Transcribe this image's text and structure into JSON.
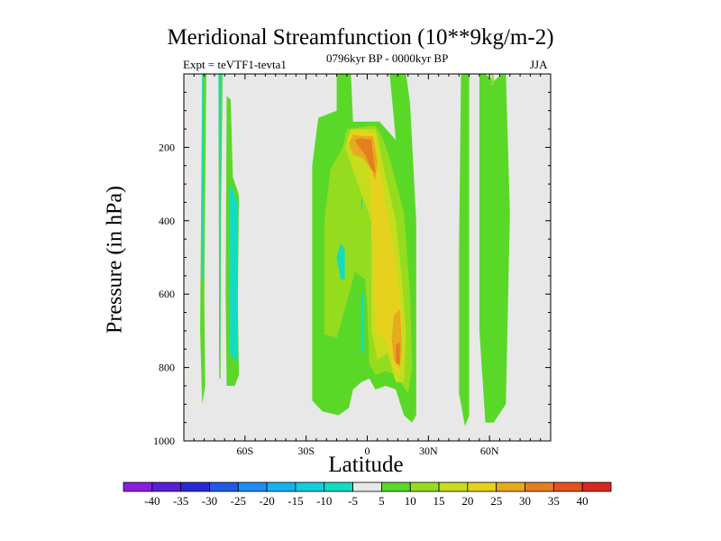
{
  "chart_data": {
    "type": "heatmap",
    "title": "Meridional Streamfunction (10**9kg/m-2)",
    "experiment_label": "Expt = teVTF1-tevta1",
    "period_label": "0796kyr BP - 0000kyr BP",
    "season_label": "JJA",
    "xlabel": "Latitude",
    "ylabel": "Pressure (in hPa)",
    "x_range": [
      -90,
      90
    ],
    "y_range": [
      1000,
      0
    ],
    "x_ticks": [
      {
        "value": -60,
        "label": "60S"
      },
      {
        "value": -30,
        "label": "30S"
      },
      {
        "value": 0,
        "label": "0"
      },
      {
        "value": 30,
        "label": "30N"
      },
      {
        "value": 60,
        "label": "60N"
      }
    ],
    "y_ticks": [
      {
        "value": 200,
        "label": "200"
      },
      {
        "value": 400,
        "label": "400"
      },
      {
        "value": 600,
        "label": "600"
      },
      {
        "value": 800,
        "label": "800"
      },
      {
        "value": 1000,
        "label": "1000"
      }
    ],
    "colorbar": {
      "levels": [
        "-40",
        "-35",
        "-30",
        "-25",
        "-20",
        "-15",
        "-10",
        "-5",
        "5",
        "10",
        "15",
        "20",
        "25",
        "30",
        "35",
        "40"
      ],
      "colors": [
        "#8a1ee0",
        "#5a1ed8",
        "#2a28d8",
        "#1e5ae6",
        "#1e8ef0",
        "#14b2f0",
        "#14cce0",
        "#14dcc0",
        "#e8e8e8",
        "#5ad828",
        "#96dc1e",
        "#c8dc1e",
        "#e6d21e",
        "#e6aa1e",
        "#e67e1e",
        "#e6501e",
        "#d8281e"
      ]
    },
    "regions": [
      {
        "level": "5",
        "polygon": [
          [
            -81,
            0
          ],
          [
            -79,
            0
          ],
          [
            -80,
            600
          ],
          [
            -79.5,
            850
          ],
          [
            -81,
            900
          ],
          [
            -82,
            700
          ]
        ]
      },
      {
        "level": "-5",
        "polygon": [
          [
            -81,
            0
          ],
          [
            -80.3,
            0
          ],
          [
            -80.6,
            300
          ],
          [
            -80.8,
            560
          ],
          [
            -81.3,
            560
          ],
          [
            -81.2,
            200
          ]
        ]
      },
      {
        "level": "5",
        "polygon": [
          [
            -73,
            0
          ],
          [
            -71,
            0
          ],
          [
            -71.8,
            400
          ],
          [
            -72,
            830
          ],
          [
            -72.6,
            830
          ],
          [
            -72.8,
            400
          ]
        ]
      },
      {
        "level": "-5",
        "polygon": [
          [
            -73,
            0
          ],
          [
            -72,
            0
          ],
          [
            -72.2,
            780
          ],
          [
            -72.7,
            780
          ],
          [
            -72.8,
            300
          ]
        ]
      },
      {
        "level": "5",
        "polygon": [
          [
            -69,
            60
          ],
          [
            -67,
            70
          ],
          [
            -66,
            280
          ],
          [
            -63,
            330
          ],
          [
            -63.5,
            620
          ],
          [
            -63,
            820
          ],
          [
            -65,
            850
          ],
          [
            -69,
            850
          ],
          [
            -69.5,
            600
          ]
        ]
      },
      {
        "level": "-5",
        "polygon": [
          [
            -67.5,
            300
          ],
          [
            -63.5,
            350
          ],
          [
            -63.6,
            620
          ],
          [
            -63.6,
            780
          ],
          [
            -65,
            780
          ],
          [
            -67.5,
            760
          ]
        ]
      },
      {
        "level": "5",
        "polygon": [
          [
            -15,
            0
          ],
          [
            -8,
            0
          ],
          [
            -7,
            130
          ],
          [
            6,
            130
          ],
          [
            14,
            180
          ],
          [
            11,
            0
          ],
          [
            19,
            0
          ],
          [
            21,
            80
          ],
          [
            24,
            400
          ],
          [
            24,
            930
          ],
          [
            22,
            950
          ],
          [
            18,
            930
          ],
          [
            14,
            860
          ],
          [
            9,
            850
          ],
          [
            4,
            860
          ],
          [
            1,
            830
          ],
          [
            -3,
            840
          ],
          [
            -7,
            860
          ],
          [
            -9,
            910
          ],
          [
            -14,
            930
          ],
          [
            -22,
            920
          ],
          [
            -27,
            890
          ],
          [
            -27,
            720
          ],
          [
            -27,
            250
          ],
          [
            -24,
            120
          ],
          [
            -15,
            100
          ]
        ]
      },
      {
        "level": "10",
        "polygon": [
          [
            -21,
            400
          ],
          [
            -18,
            260
          ],
          [
            -12,
            200
          ],
          [
            -10,
            150
          ],
          [
            4,
            140
          ],
          [
            8,
            180
          ],
          [
            12,
            250
          ],
          [
            18,
            380
          ],
          [
            21,
            600
          ],
          [
            22,
            800
          ],
          [
            20,
            870
          ],
          [
            14,
            820
          ],
          [
            9,
            810
          ],
          [
            4,
            820
          ],
          [
            1,
            790
          ],
          [
            0,
            640
          ],
          [
            -1,
            560
          ],
          [
            -6,
            540
          ],
          [
            -10,
            620
          ],
          [
            -15,
            720
          ],
          [
            -21,
            710
          ]
        ]
      },
      {
        "level": "15",
        "polygon": [
          [
            -11,
            200
          ],
          [
            -8,
            150
          ],
          [
            4,
            150
          ],
          [
            6,
            200
          ],
          [
            9,
            280
          ],
          [
            14,
            400
          ],
          [
            17,
            560
          ],
          [
            19,
            700
          ],
          [
            18,
            840
          ],
          [
            14,
            840
          ],
          [
            10,
            760
          ],
          [
            5,
            780
          ],
          [
            2,
            700
          ],
          [
            2,
            560
          ],
          [
            2,
            400
          ]
        ]
      },
      {
        "level": "20",
        "polygon": [
          [
            -10,
            175
          ],
          [
            -7,
            155
          ],
          [
            4,
            160
          ],
          [
            5,
            220
          ],
          [
            8,
            330
          ],
          [
            12,
            450
          ],
          [
            15,
            560
          ],
          [
            17,
            680
          ],
          [
            16,
            820
          ],
          [
            13,
            800
          ],
          [
            9,
            730
          ],
          [
            4,
            700
          ],
          [
            3,
            520
          ],
          [
            2,
            360
          ],
          [
            1,
            250
          ],
          [
            -5,
            220
          ]
        ]
      },
      {
        "level": "25",
        "polygon": [
          [
            -9,
            190
          ],
          [
            -7,
            165
          ],
          [
            -2,
            170
          ],
          [
            3,
            170
          ],
          [
            5,
            240
          ],
          [
            4,
            290
          ],
          [
            2,
            260
          ],
          [
            -2,
            230
          ],
          [
            -7,
            220
          ]
        ]
      },
      {
        "level": "25",
        "polygon": [
          [
            13,
            660
          ],
          [
            16,
            640
          ],
          [
            17,
            740
          ],
          [
            16,
            800
          ],
          [
            13,
            780
          ],
          [
            12,
            720
          ]
        ]
      },
      {
        "level": "30",
        "polygon": [
          [
            -6,
            180
          ],
          [
            -3,
            175
          ],
          [
            2,
            180
          ],
          [
            4,
            270
          ],
          [
            2,
            260
          ],
          [
            -1,
            220
          ],
          [
            -4,
            200
          ]
        ]
      },
      {
        "level": "30",
        "polygon": [
          [
            14,
            740
          ],
          [
            16,
            730
          ],
          [
            16,
            790
          ],
          [
            14,
            790
          ]
        ]
      },
      {
        "level": "-5",
        "polygon": [
          [
            -15,
            500
          ],
          [
            -13,
            460
          ],
          [
            -11,
            480
          ],
          [
            -11,
            560
          ],
          [
            -13,
            560
          ]
        ]
      },
      {
        "level": "-5",
        "polygon": [
          [
            -3,
            600
          ],
          [
            -2,
            600
          ],
          [
            -2,
            760
          ],
          [
            -3,
            760
          ]
        ]
      },
      {
        "level": "-5",
        "polygon": [
          [
            -3,
            340
          ],
          [
            -2.4,
            340
          ],
          [
            -2.4,
            370
          ],
          [
            -3,
            370
          ]
        ]
      },
      {
        "level": "5",
        "polygon": [
          [
            46,
            0
          ],
          [
            50,
            0
          ],
          [
            50,
            600
          ],
          [
            50,
            930
          ],
          [
            48,
            960
          ],
          [
            45,
            870
          ],
          [
            45,
            480
          ]
        ]
      },
      {
        "level": "5",
        "polygon": [
          [
            55,
            0
          ],
          [
            58,
            0
          ],
          [
            62,
            20
          ],
          [
            66,
            0
          ],
          [
            68,
            0
          ],
          [
            70,
            380
          ],
          [
            68,
            900
          ],
          [
            62,
            950
          ],
          [
            58,
            950
          ],
          [
            55,
            700
          ],
          [
            55,
            400
          ]
        ]
      },
      {
        "level": "10",
        "polygon": [
          [
            61,
            0
          ],
          [
            62,
            0
          ],
          [
            62,
            30
          ],
          [
            61,
            30
          ]
        ]
      }
    ]
  }
}
